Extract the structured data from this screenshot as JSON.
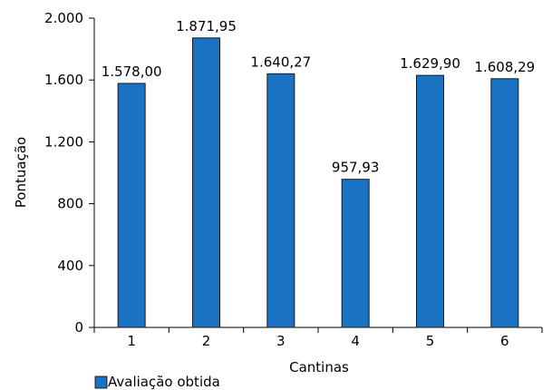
{
  "chart_data": {
    "type": "bar",
    "categories": [
      "1",
      "2",
      "3",
      "4",
      "5",
      "6"
    ],
    "series": [
      {
        "name": "Avaliação obtida",
        "values": [
          1578.0,
          1871.95,
          1640.27,
          957.93,
          1629.9,
          1608.29
        ],
        "labels": [
          "1.578,00",
          "1.871,95",
          "1.640,27",
          "957,93",
          "1.629,90",
          "1.608,29"
        ],
        "color": "#1a72c2"
      }
    ],
    "xlabel": "Cantinas",
    "ylabel": "Pontuação",
    "ylim": [
      0,
      2000
    ],
    "yticks": [
      0,
      400,
      800,
      1200,
      1600,
      2000
    ],
    "ytick_labels": [
      "0",
      "400",
      "800",
      "1.200",
      "1.600",
      "2.000"
    ],
    "grid": false,
    "legend_position": "bottom-left"
  }
}
